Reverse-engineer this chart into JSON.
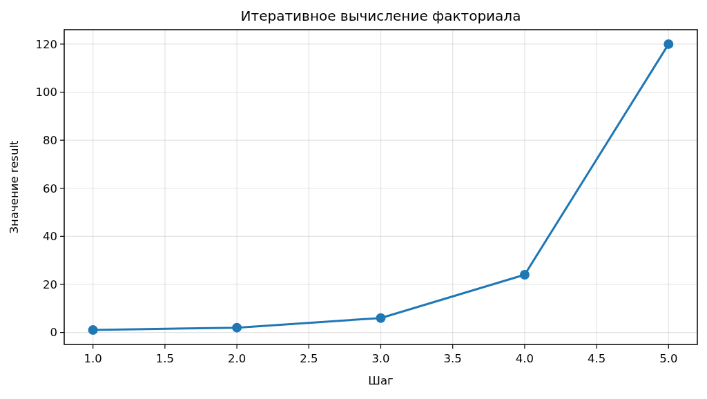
{
  "chart_data": {
    "type": "line",
    "title": "Итеративное вычисление факториала",
    "xlabel": "Шаг",
    "ylabel": "Значение result",
    "x": [
      1,
      2,
      3,
      4,
      5
    ],
    "series": [
      {
        "color": "#1f77b4",
        "values": [
          1,
          2,
          6,
          24,
          120
        ]
      }
    ],
    "xlim": [
      0.8,
      5.2
    ],
    "ylim": [
      -5,
      126
    ],
    "xticks": [
      {
        "value": 1,
        "label": "1.0"
      },
      {
        "value": 1.5,
        "label": "1.5"
      },
      {
        "value": 2,
        "label": "2.0"
      },
      {
        "value": 2.5,
        "label": "2.5"
      },
      {
        "value": 3,
        "label": "3.0"
      },
      {
        "value": 3.5,
        "label": "3.5"
      },
      {
        "value": 4,
        "label": "4.0"
      },
      {
        "value": 4.5,
        "label": "4.5"
      },
      {
        "value": 5,
        "label": "5.0"
      }
    ],
    "yticks": [
      0,
      20,
      40,
      60,
      80,
      100,
      120
    ],
    "grid": true,
    "marker": "circle",
    "line_style": "solid"
  }
}
